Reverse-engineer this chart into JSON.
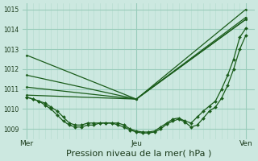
{
  "bg_color": "#cce8e0",
  "grid_color": "#99ccbb",
  "line_color": "#1a5c1a",
  "marker_color": "#1a5c1a",
  "xlabel": "Pression niveau de la mer( hPa )",
  "xlabel_fontsize": 8,
  "ylim": [
    1008.5,
    1015.3
  ],
  "yticks": [
    1009,
    1010,
    1011,
    1012,
    1013,
    1014,
    1015
  ],
  "xtick_labels": [
    "Mer",
    "Jeu",
    "Ven"
  ],
  "xtick_positions": [
    0,
    0.5,
    1.0
  ],
  "vline_positions": [
    0.0,
    0.5,
    1.0
  ],
  "series": [
    {
      "x": [
        0.0,
        0.5,
        1.0
      ],
      "y": [
        1012.7,
        1010.5,
        1014.5
      ],
      "dense": false
    },
    {
      "x": [
        0.0,
        0.5,
        1.0
      ],
      "y": [
        1011.7,
        1010.5,
        1014.6
      ],
      "dense": false
    },
    {
      "x": [
        0.0,
        0.5,
        1.0
      ],
      "y": [
        1011.1,
        1010.5,
        1014.5
      ],
      "dense": false
    },
    {
      "x": [
        0.0,
        0.5,
        1.0
      ],
      "y": [
        1010.7,
        1010.5,
        1015.0
      ],
      "dense": false
    },
    {
      "x": [
        0.0,
        0.028,
        0.056,
        0.083,
        0.111,
        0.139,
        0.167,
        0.194,
        0.222,
        0.25,
        0.278,
        0.306,
        0.333,
        0.361,
        0.389,
        0.417,
        0.444,
        0.472,
        0.5,
        0.528,
        0.556,
        0.583,
        0.611,
        0.639,
        0.667,
        0.694,
        0.722,
        0.75,
        0.778,
        0.806,
        0.833,
        0.861,
        0.889,
        0.917,
        0.944,
        0.972,
        1.0
      ],
      "y": [
        1010.6,
        1010.5,
        1010.4,
        1010.3,
        1010.1,
        1009.9,
        1009.6,
        1009.3,
        1009.2,
        1009.2,
        1009.3,
        1009.3,
        1009.3,
        1009.3,
        1009.3,
        1009.3,
        1009.2,
        1009.0,
        1008.9,
        1008.85,
        1008.85,
        1008.9,
        1009.1,
        1009.3,
        1009.5,
        1009.55,
        1009.4,
        1009.3,
        1009.6,
        1009.9,
        1010.15,
        1010.4,
        1011.0,
        1011.7,
        1012.5,
        1013.6,
        1014.05
      ],
      "dense": true
    },
    {
      "x": [
        0.0,
        0.028,
        0.056,
        0.083,
        0.111,
        0.139,
        0.167,
        0.194,
        0.222,
        0.25,
        0.278,
        0.306,
        0.333,
        0.361,
        0.389,
        0.417,
        0.444,
        0.472,
        0.5,
        0.528,
        0.556,
        0.583,
        0.611,
        0.639,
        0.667,
        0.694,
        0.722,
        0.75,
        0.778,
        0.806,
        0.833,
        0.861,
        0.889,
        0.917,
        0.944,
        0.972,
        1.0
      ],
      "y": [
        1010.6,
        1010.5,
        1010.4,
        1010.2,
        1010.0,
        1009.7,
        1009.4,
        1009.2,
        1009.1,
        1009.1,
        1009.2,
        1009.2,
        1009.3,
        1009.3,
        1009.3,
        1009.2,
        1009.1,
        1008.95,
        1008.85,
        1008.8,
        1008.8,
        1008.85,
        1009.0,
        1009.25,
        1009.4,
        1009.5,
        1009.35,
        1009.1,
        1009.2,
        1009.55,
        1009.9,
        1010.1,
        1010.55,
        1011.2,
        1012.0,
        1013.0,
        1013.7
      ],
      "dense": true
    }
  ]
}
